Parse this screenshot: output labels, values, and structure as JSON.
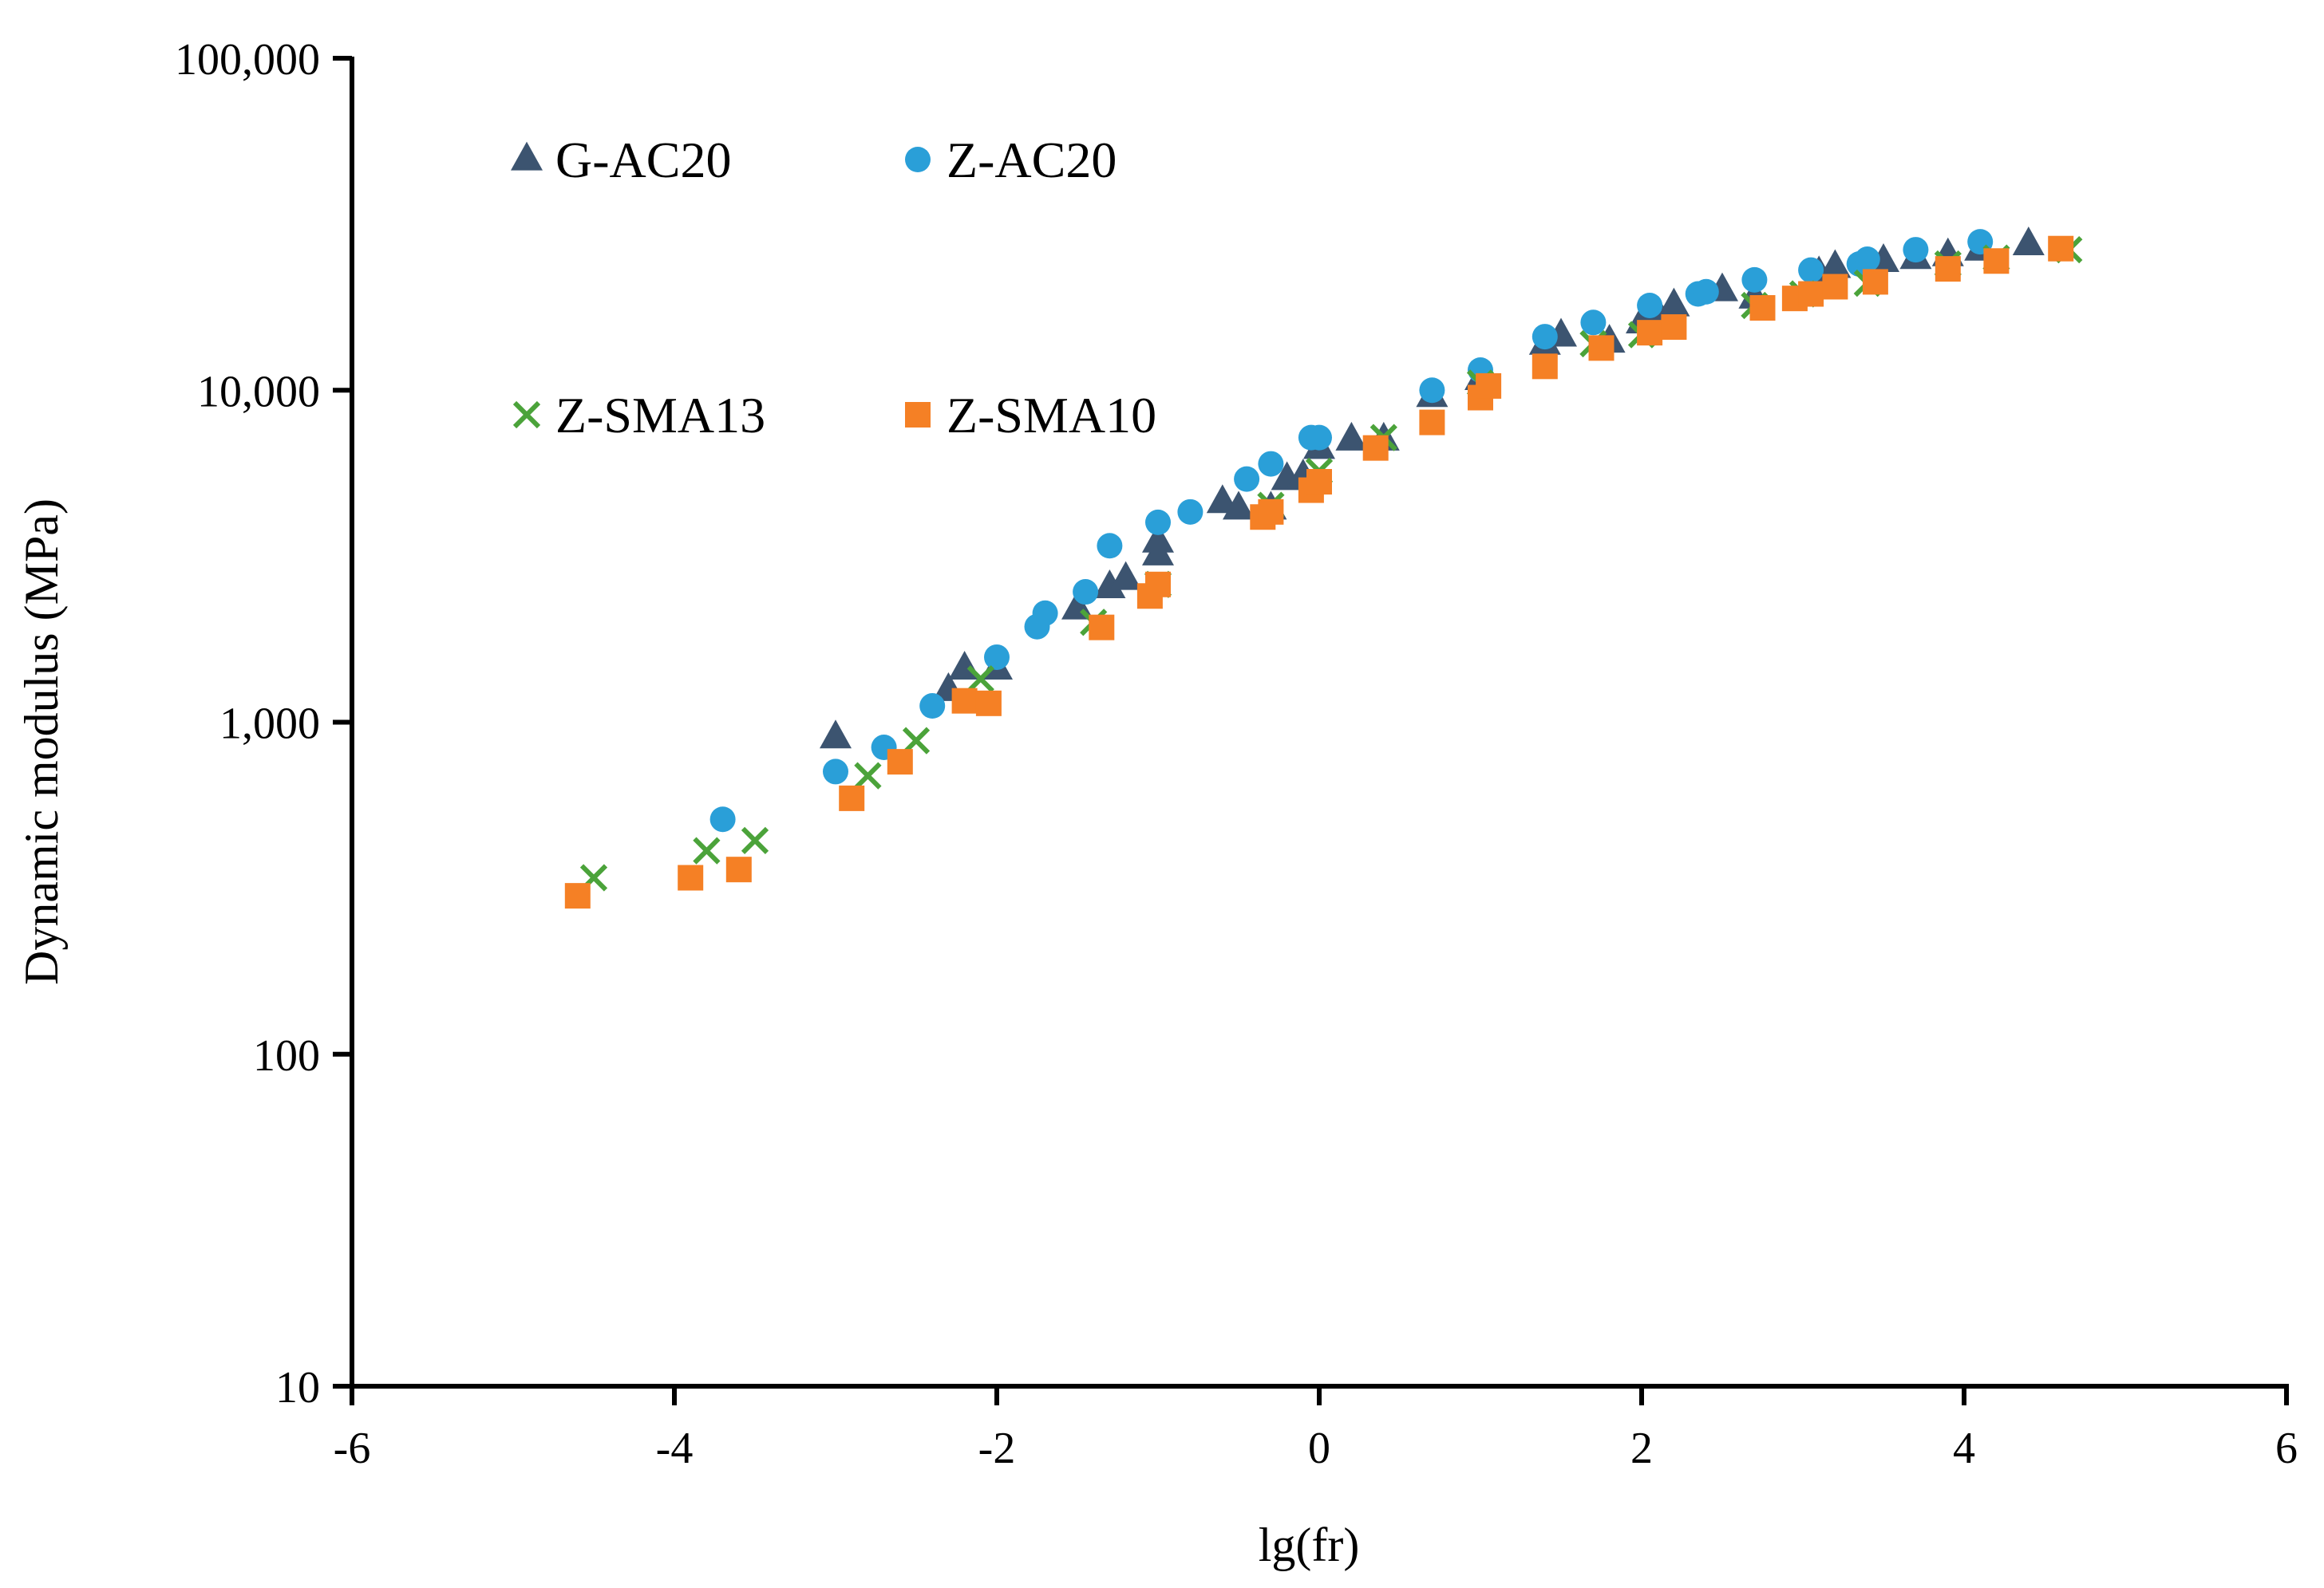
{
  "chart_data": {
    "type": "scatter",
    "title": "",
    "xlabel": "lg(fr)",
    "ylabel": "Dynamic modulus (MPa)",
    "xlim": [
      -6,
      6
    ],
    "ylim": [
      10,
      100000
    ],
    "yscale": "log",
    "x_ticks": [
      -6,
      -4,
      -2,
      0,
      2,
      4,
      6
    ],
    "x_tick_labels": [
      "-6",
      "-4",
      "-2",
      "0",
      "2",
      "4",
      "6"
    ],
    "y_ticks": [
      10,
      100,
      1000,
      10000,
      100000
    ],
    "y_tick_labels": [
      "10",
      "100",
      "1,000",
      "10,000",
      "100,000"
    ],
    "grid": false,
    "legend_position": "top-left",
    "series": [
      {
        "name": "G-AC20",
        "marker": "triangle",
        "color": "#3C5470",
        "points": [
          [
            -3.0,
            900
          ],
          [
            -2.3,
            1250
          ],
          [
            -2.2,
            1450
          ],
          [
            -2.0,
            1450
          ],
          [
            -1.5,
            2200
          ],
          [
            -1.3,
            2550
          ],
          [
            -1.2,
            2700
          ],
          [
            -1.0,
            3200
          ],
          [
            -1.0,
            3500
          ],
          [
            -0.6,
            4600
          ],
          [
            -0.5,
            4400
          ],
          [
            -0.3,
            4400
          ],
          [
            -0.2,
            5400
          ],
          [
            -0.1,
            5500
          ],
          [
            0.0,
            6700
          ],
          [
            0.2,
            7100
          ],
          [
            0.4,
            7100
          ],
          [
            0.7,
            9600
          ],
          [
            1.0,
            10800
          ],
          [
            1.4,
            13800
          ],
          [
            1.5,
            14600
          ],
          [
            1.8,
            14000
          ],
          [
            2.0,
            16000
          ],
          [
            2.1,
            17000
          ],
          [
            2.2,
            18000
          ],
          [
            2.5,
            20000
          ],
          [
            2.7,
            19000
          ],
          [
            3.1,
            22500
          ],
          [
            3.2,
            23500
          ],
          [
            3.5,
            24500
          ],
          [
            3.7,
            25000
          ],
          [
            3.9,
            25500
          ],
          [
            4.1,
            26500
          ],
          [
            4.4,
            27500
          ]
        ]
      },
      {
        "name": "Z-AC20",
        "marker": "circle",
        "color": "#2A9FD8",
        "points": [
          [
            -3.7,
            510
          ],
          [
            -3.0,
            710
          ],
          [
            -2.7,
            840
          ],
          [
            -2.4,
            1120
          ],
          [
            -2.0,
            1570
          ],
          [
            -1.75,
            1940
          ],
          [
            -1.7,
            2130
          ],
          [
            -1.45,
            2470
          ],
          [
            -1.3,
            3400
          ],
          [
            -1.0,
            4000
          ],
          [
            -0.8,
            4300
          ],
          [
            -0.45,
            5400
          ],
          [
            -0.3,
            6000
          ],
          [
            -0.05,
            7200
          ],
          [
            0.0,
            7200
          ],
          [
            0.7,
            10000
          ],
          [
            1.0,
            11500
          ],
          [
            1.4,
            14500
          ],
          [
            1.7,
            16000
          ],
          [
            2.05,
            18000
          ],
          [
            2.35,
            19500
          ],
          [
            2.4,
            19800
          ],
          [
            2.7,
            21500
          ],
          [
            3.05,
            23000
          ],
          [
            3.35,
            24000
          ],
          [
            3.4,
            24800
          ],
          [
            3.7,
            26500
          ],
          [
            4.1,
            28000
          ]
        ]
      },
      {
        "name": "Z-SMA13",
        "marker": "x",
        "color": "#4BA33A",
        "points": [
          [
            -4.5,
            340
          ],
          [
            -3.8,
            410
          ],
          [
            -3.5,
            440
          ],
          [
            -2.8,
            690
          ],
          [
            -2.5,
            880
          ],
          [
            -2.1,
            1350
          ],
          [
            -1.4,
            2000
          ],
          [
            -1.0,
            2600
          ],
          [
            -0.3,
            4500
          ],
          [
            0.0,
            5700
          ],
          [
            0.4,
            7200
          ],
          [
            1.0,
            10500
          ],
          [
            1.7,
            13800
          ],
          [
            2.0,
            14700
          ],
          [
            2.7,
            18000
          ],
          [
            3.0,
            19500
          ],
          [
            3.4,
            21000
          ],
          [
            3.9,
            24000
          ],
          [
            4.2,
            25000
          ],
          [
            4.65,
            26500
          ]
        ]
      },
      {
        "name": "Z-SMA10",
        "marker": "square",
        "color": "#F58025",
        "points": [
          [
            -4.6,
            300
          ],
          [
            -3.9,
            340
          ],
          [
            -3.6,
            360
          ],
          [
            -2.9,
            590
          ],
          [
            -2.6,
            760
          ],
          [
            -2.2,
            1160
          ],
          [
            -2.05,
            1140
          ],
          [
            -1.35,
            1930
          ],
          [
            -1.05,
            2400
          ],
          [
            -1.0,
            2600
          ],
          [
            -0.35,
            4150
          ],
          [
            -0.3,
            4300
          ],
          [
            -0.05,
            5000
          ],
          [
            0.0,
            5300
          ],
          [
            0.35,
            6700
          ],
          [
            0.7,
            8000
          ],
          [
            1.0,
            9500
          ],
          [
            1.05,
            10300
          ],
          [
            1.4,
            11800
          ],
          [
            1.75,
            13400
          ],
          [
            2.05,
            14900
          ],
          [
            2.2,
            15500
          ],
          [
            2.75,
            17700
          ],
          [
            2.95,
            18900
          ],
          [
            3.05,
            19500
          ],
          [
            3.2,
            20500
          ],
          [
            3.45,
            21200
          ],
          [
            3.9,
            23200
          ],
          [
            4.2,
            24500
          ],
          [
            4.6,
            26700
          ]
        ]
      }
    ]
  }
}
